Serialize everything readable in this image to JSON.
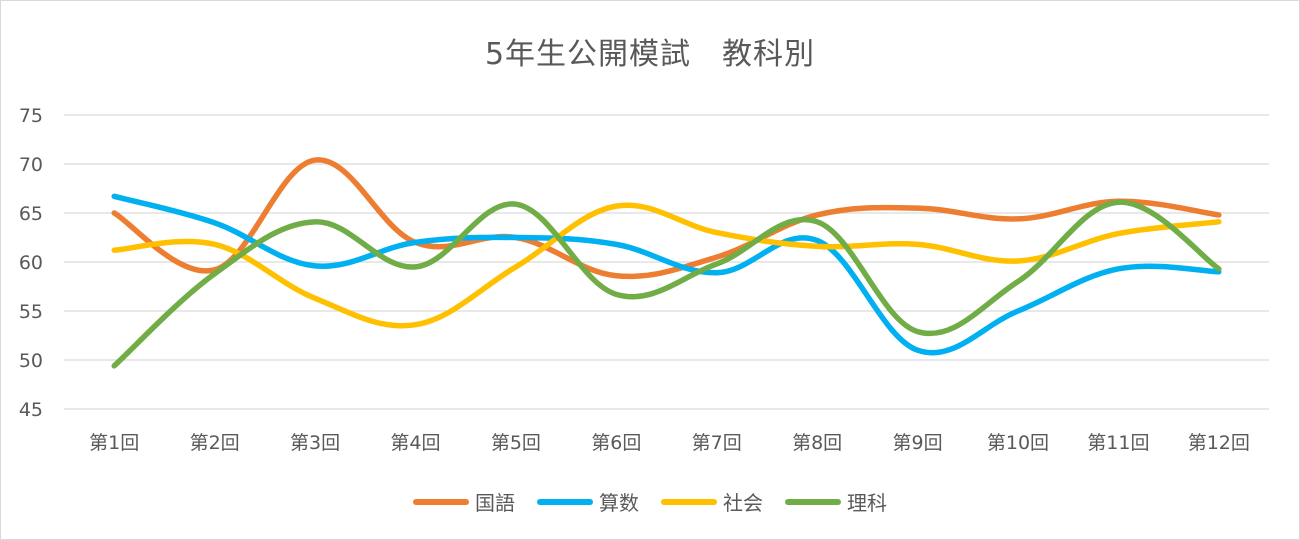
{
  "chart_data": {
    "type": "line",
    "title": "5年生公開模試　教科別",
    "xlabel": "",
    "ylabel": "",
    "categories": [
      "第1回",
      "第2回",
      "第3回",
      "第4回",
      "第5回",
      "第6回",
      "第7回",
      "第8回",
      "第9回",
      "第10回",
      "第11回",
      "第12回"
    ],
    "ylim": [
      45,
      75
    ],
    "yticks": [
      75,
      70,
      65,
      60,
      55,
      50,
      45
    ],
    "grid": true,
    "smooth": true,
    "legend_position": "bottom",
    "series": [
      {
        "name": "国語",
        "color": "#ED7D31",
        "values": [
          65,
          59.2,
          70.4,
          62,
          62.5,
          58.6,
          60.5,
          64.8,
          65.5,
          64.4,
          66.2,
          64.8
        ]
      },
      {
        "name": "算数",
        "color": "#00B0F0",
        "values": [
          66.7,
          64,
          59.6,
          62,
          62.5,
          61.8,
          58.9,
          62.2,
          51,
          55,
          59.3,
          59
        ]
      },
      {
        "name": "社会",
        "color": "#FFC000",
        "values": [
          61.2,
          61.8,
          56.3,
          53.6,
          59.5,
          65.7,
          63,
          61.6,
          61.8,
          60.1,
          62.9,
          64.1
        ]
      },
      {
        "name": "理科",
        "color": "#70AD47",
        "values": [
          49.4,
          58.8,
          64.1,
          59.5,
          65.9,
          56.7,
          59.8,
          64.1,
          52.9,
          58,
          66.1,
          59.3
        ]
      }
    ]
  }
}
